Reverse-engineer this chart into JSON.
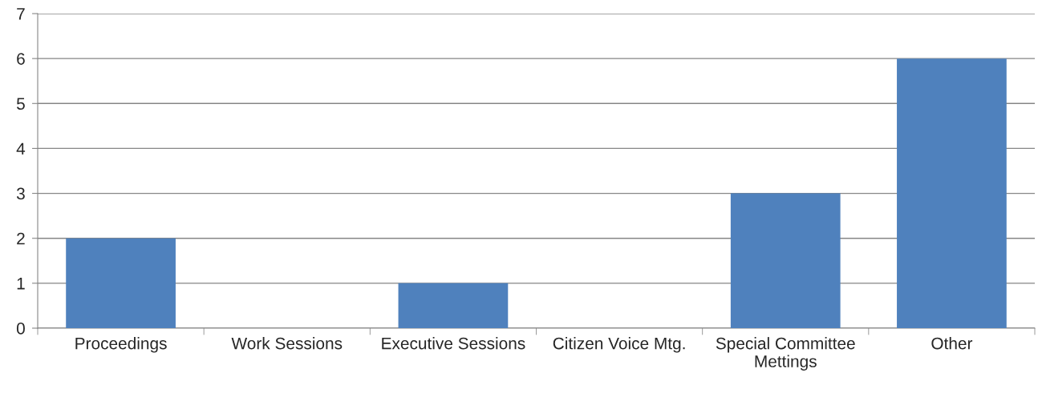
{
  "chart_data": {
    "type": "bar",
    "categories": [
      "Proceedings",
      "Work Sessions",
      "Executive Sessions",
      "Citizen Voice Mtg.",
      "Special Committee\nMettings",
      "Other"
    ],
    "values": [
      2,
      0,
      1,
      0,
      3,
      6
    ],
    "color": "#4f81bd",
    "ylim": [
      0,
      7
    ],
    "yticks": [
      0,
      1,
      2,
      3,
      4,
      5,
      6,
      7
    ],
    "grid": "y",
    "legend": false
  }
}
